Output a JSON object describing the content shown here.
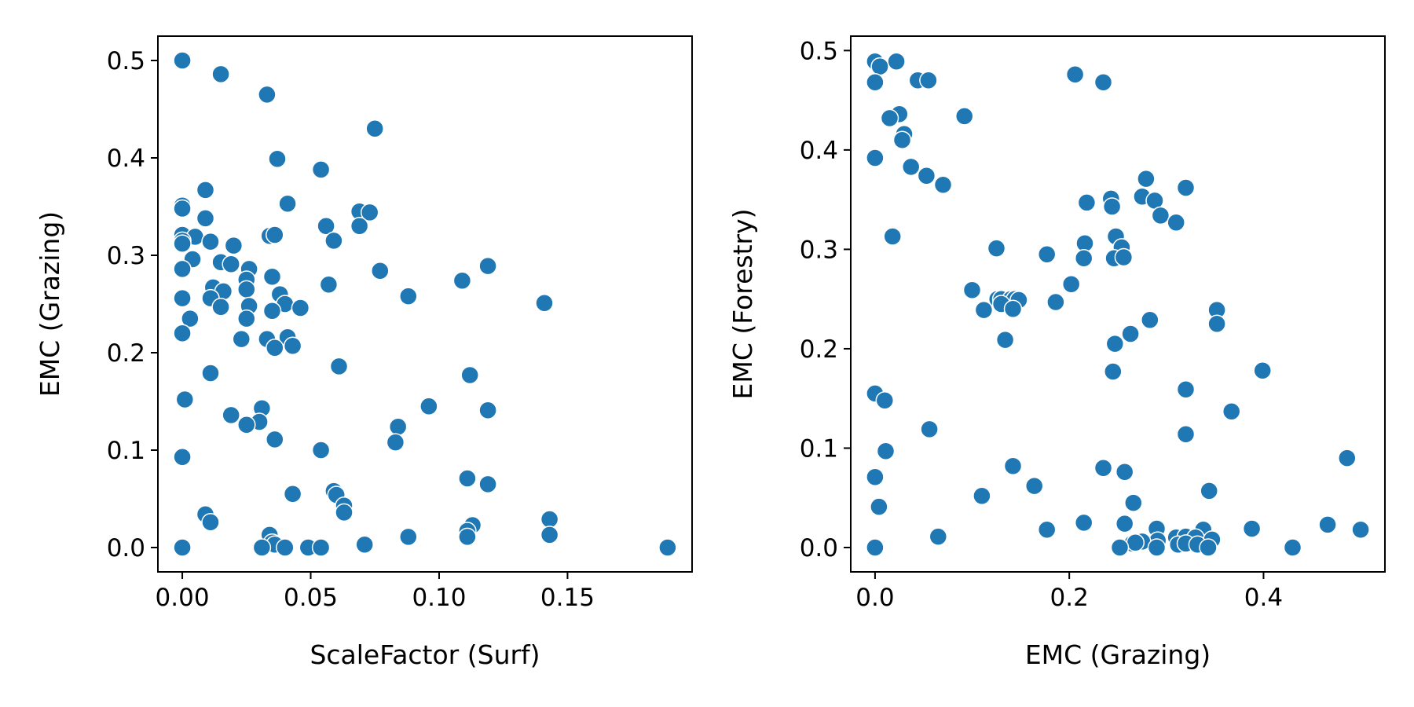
{
  "colors": {
    "marker": "#1f77b4",
    "marker_edge": "#ffffff",
    "axes": "#000000",
    "background": "#ffffff"
  },
  "chart_data": [
    {
      "type": "scatter",
      "title": "",
      "xlabel": "ScaleFactor (Surf)",
      "ylabel": "EMC (Grazing)",
      "xlim": [
        -0.0095,
        0.1985
      ],
      "ylim": [
        -0.025,
        0.525
      ],
      "xticks": [
        0.0,
        0.05,
        0.1,
        0.15
      ],
      "xtick_labels": [
        "0.00",
        "0.05",
        "0.10",
        "0.15"
      ],
      "yticks": [
        0.0,
        0.1,
        0.2,
        0.3,
        0.4,
        0.5
      ],
      "ytick_labels": [
        "0.0",
        "0.1",
        "0.2",
        "0.3",
        "0.4",
        "0.5"
      ],
      "grid": false,
      "legend": "none",
      "points": [
        [
          0.0,
          0.5
        ],
        [
          0.015,
          0.486
        ],
        [
          0.033,
          0.465
        ],
        [
          0.075,
          0.43
        ],
        [
          0.037,
          0.399
        ],
        [
          0.054,
          0.388
        ],
        [
          0.009,
          0.367
        ],
        [
          0.041,
          0.353
        ],
        [
          0.0,
          0.351
        ],
        [
          0.0,
          0.348
        ],
        [
          0.069,
          0.345
        ],
        [
          0.073,
          0.344
        ],
        [
          0.009,
          0.338
        ],
        [
          0.056,
          0.33
        ],
        [
          0.069,
          0.33
        ],
        [
          0.0,
          0.321
        ],
        [
          0.034,
          0.32
        ],
        [
          0.036,
          0.321
        ],
        [
          0.005,
          0.319
        ],
        [
          0.0,
          0.315
        ],
        [
          0.059,
          0.315
        ],
        [
          0.011,
          0.314
        ],
        [
          0.0,
          0.312
        ],
        [
          0.02,
          0.31
        ],
        [
          0.004,
          0.296
        ],
        [
          0.015,
          0.293
        ],
        [
          0.019,
          0.291
        ],
        [
          0.119,
          0.289
        ],
        [
          0.0,
          0.286
        ],
        [
          0.026,
          0.286
        ],
        [
          0.077,
          0.284
        ],
        [
          0.035,
          0.278
        ],
        [
          0.025,
          0.275
        ],
        [
          0.109,
          0.274
        ],
        [
          0.057,
          0.27
        ],
        [
          0.012,
          0.267
        ],
        [
          0.016,
          0.263
        ],
        [
          0.025,
          0.265
        ],
        [
          0.038,
          0.26
        ],
        [
          0.011,
          0.256
        ],
        [
          0.0,
          0.256
        ],
        [
          0.088,
          0.258
        ],
        [
          0.141,
          0.251
        ],
        [
          0.04,
          0.25
        ],
        [
          0.015,
          0.247
        ],
        [
          0.046,
          0.246
        ],
        [
          0.026,
          0.248
        ],
        [
          0.035,
          0.243
        ],
        [
          0.025,
          0.235
        ],
        [
          0.003,
          0.235
        ],
        [
          0.0,
          0.22
        ],
        [
          0.023,
          0.214
        ],
        [
          0.033,
          0.214
        ],
        [
          0.041,
          0.216
        ],
        [
          0.043,
          0.207
        ],
        [
          0.036,
          0.205
        ],
        [
          0.061,
          0.186
        ],
        [
          0.011,
          0.179
        ],
        [
          0.112,
          0.177
        ],
        [
          0.001,
          0.152
        ],
        [
          0.096,
          0.145
        ],
        [
          0.031,
          0.143
        ],
        [
          0.119,
          0.141
        ],
        [
          0.019,
          0.136
        ],
        [
          0.03,
          0.129
        ],
        [
          0.025,
          0.126
        ],
        [
          0.084,
          0.124
        ],
        [
          0.036,
          0.111
        ],
        [
          0.083,
          0.108
        ],
        [
          0.054,
          0.1
        ],
        [
          0.0,
          0.093
        ],
        [
          0.111,
          0.071
        ],
        [
          0.119,
          0.065
        ],
        [
          0.059,
          0.058
        ],
        [
          0.043,
          0.055
        ],
        [
          0.06,
          0.054
        ],
        [
          0.063,
          0.043
        ],
        [
          0.009,
          0.034
        ],
        [
          0.063,
          0.036
        ],
        [
          0.011,
          0.026
        ],
        [
          0.143,
          0.029
        ],
        [
          0.113,
          0.023
        ],
        [
          0.111,
          0.017
        ],
        [
          0.034,
          0.013
        ],
        [
          0.143,
          0.013
        ],
        [
          0.088,
          0.011
        ],
        [
          0.111,
          0.011
        ],
        [
          0.035,
          0.005
        ],
        [
          0.036,
          0.003
        ],
        [
          0.071,
          0.003
        ],
        [
          0.0,
          0.0
        ],
        [
          0.031,
          0.0
        ],
        [
          0.04,
          0.0
        ],
        [
          0.049,
          0.0
        ],
        [
          0.054,
          0.0
        ],
        [
          0.189,
          0.0
        ]
      ]
    },
    {
      "type": "scatter",
      "title": "",
      "xlabel": "EMC (Grazing)",
      "ylabel": "EMC (Forestry)",
      "xlim": [
        -0.025,
        0.525
      ],
      "ylim": [
        -0.0245,
        0.5145
      ],
      "xticks": [
        0.0,
        0.2,
        0.4
      ],
      "xtick_labels": [
        "0.0",
        "0.2",
        "0.4"
      ],
      "yticks": [
        0.0,
        0.1,
        0.2,
        0.3,
        0.4,
        0.5
      ],
      "ytick_labels": [
        "0.0",
        "0.1",
        "0.2",
        "0.3",
        "0.4",
        "0.5"
      ],
      "grid": false,
      "legend": "none",
      "points": [
        [
          0.0,
          0.489
        ],
        [
          0.022,
          0.489
        ],
        [
          0.005,
          0.484
        ],
        [
          0.206,
          0.476
        ],
        [
          0.0,
          0.468
        ],
        [
          0.044,
          0.47
        ],
        [
          0.055,
          0.47
        ],
        [
          0.235,
          0.468
        ],
        [
          0.025,
          0.436
        ],
        [
          0.092,
          0.434
        ],
        [
          0.015,
          0.432
        ],
        [
          0.03,
          0.416
        ],
        [
          0.028,
          0.41
        ],
        [
          0.0,
          0.392
        ],
        [
          0.037,
          0.383
        ],
        [
          0.053,
          0.374
        ],
        [
          0.07,
          0.365
        ],
        [
          0.279,
          0.371
        ],
        [
          0.32,
          0.362
        ],
        [
          0.275,
          0.353
        ],
        [
          0.288,
          0.349
        ],
        [
          0.243,
          0.351
        ],
        [
          0.218,
          0.347
        ],
        [
          0.244,
          0.343
        ],
        [
          0.294,
          0.334
        ],
        [
          0.31,
          0.327
        ],
        [
          0.018,
          0.313
        ],
        [
          0.248,
          0.313
        ],
        [
          0.216,
          0.306
        ],
        [
          0.254,
          0.302
        ],
        [
          0.125,
          0.301
        ],
        [
          0.177,
          0.295
        ],
        [
          0.215,
          0.291
        ],
        [
          0.246,
          0.291
        ],
        [
          0.256,
          0.292
        ],
        [
          0.1,
          0.259
        ],
        [
          0.126,
          0.25
        ],
        [
          0.13,
          0.25
        ],
        [
          0.14,
          0.25
        ],
        [
          0.144,
          0.25
        ],
        [
          0.148,
          0.249
        ],
        [
          0.186,
          0.247
        ],
        [
          0.13,
          0.245
        ],
        [
          0.112,
          0.239
        ],
        [
          0.142,
          0.24
        ],
        [
          0.202,
          0.265
        ],
        [
          0.352,
          0.239
        ],
        [
          0.283,
          0.229
        ],
        [
          0.352,
          0.225
        ],
        [
          0.263,
          0.215
        ],
        [
          0.134,
          0.209
        ],
        [
          0.247,
          0.205
        ],
        [
          0.399,
          0.178
        ],
        [
          0.245,
          0.177
        ],
        [
          0.32,
          0.159
        ],
        [
          0.0,
          0.155
        ],
        [
          0.01,
          0.148
        ],
        [
          0.367,
          0.137
        ],
        [
          0.056,
          0.119
        ],
        [
          0.32,
          0.114
        ],
        [
          0.011,
          0.097
        ],
        [
          0.486,
          0.09
        ],
        [
          0.142,
          0.082
        ],
        [
          0.235,
          0.08
        ],
        [
          0.257,
          0.076
        ],
        [
          0.0,
          0.071
        ],
        [
          0.164,
          0.062
        ],
        [
          0.344,
          0.057
        ],
        [
          0.11,
          0.052
        ],
        [
          0.266,
          0.045
        ],
        [
          0.004,
          0.041
        ],
        [
          0.466,
          0.023
        ],
        [
          0.215,
          0.025
        ],
        [
          0.257,
          0.024
        ],
        [
          0.29,
          0.019
        ],
        [
          0.388,
          0.019
        ],
        [
          0.177,
          0.018
        ],
        [
          0.338,
          0.018
        ],
        [
          0.5,
          0.018
        ],
        [
          0.065,
          0.011
        ],
        [
          0.31,
          0.01
        ],
        [
          0.32,
          0.011
        ],
        [
          0.33,
          0.01
        ],
        [
          0.347,
          0.008
        ],
        [
          0.291,
          0.007
        ],
        [
          0.275,
          0.006
        ],
        [
          0.265,
          0.004
        ],
        [
          0.268,
          0.005
        ],
        [
          0.312,
          0.003
        ],
        [
          0.32,
          0.004
        ],
        [
          0.332,
          0.003
        ],
        [
          0.0,
          0.0
        ],
        [
          0.252,
          0.0
        ],
        [
          0.29,
          0.0
        ],
        [
          0.343,
          0.0
        ],
        [
          0.43,
          0.0
        ]
      ]
    }
  ]
}
